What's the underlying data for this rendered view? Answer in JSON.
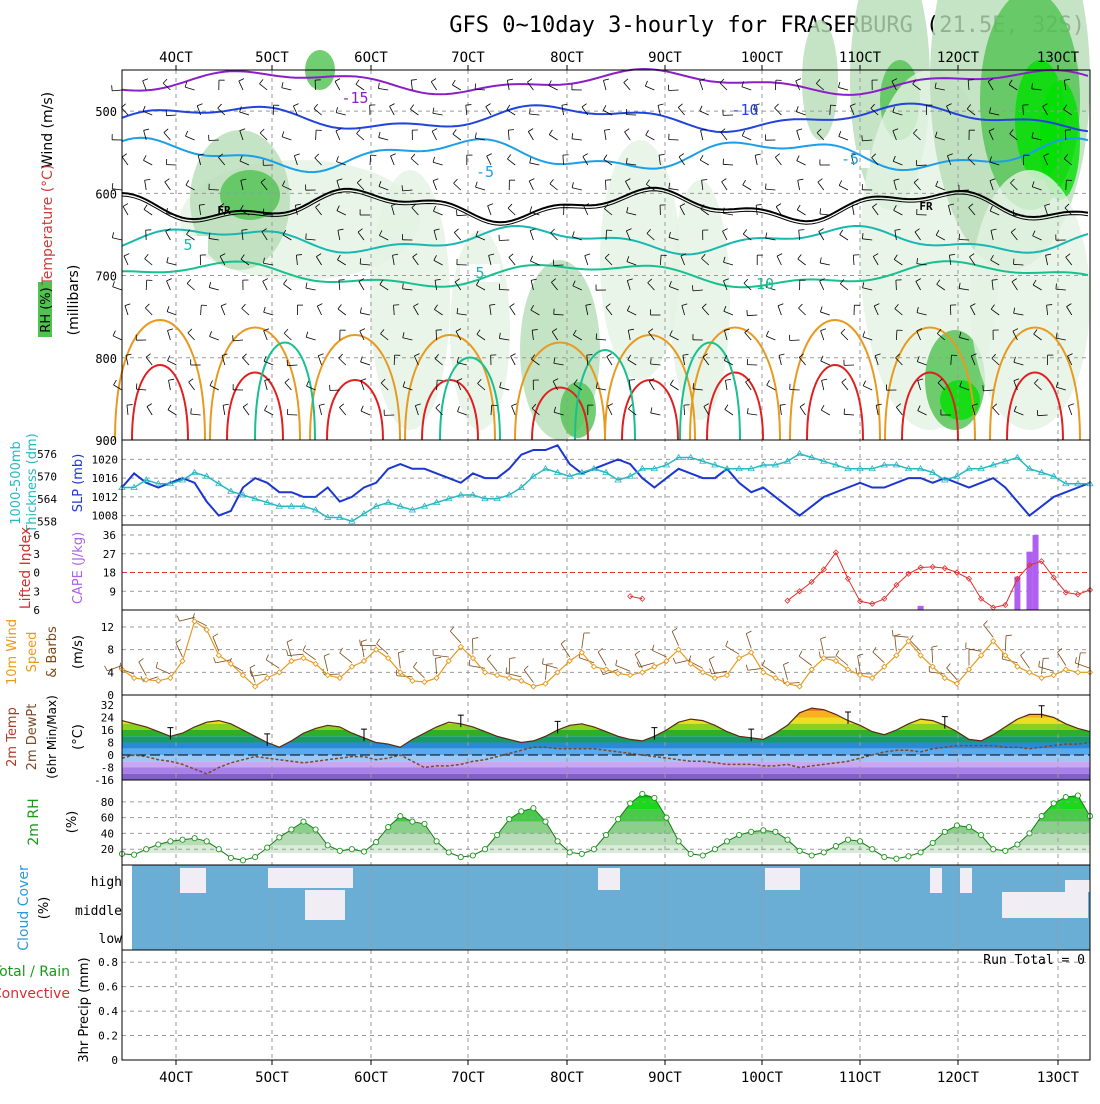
{
  "title": "GFS 0~10day 3-hourly for FRASERBURG (21.5E, 32S)",
  "date_ticks": [
    "4OCT",
    "5OCT",
    "6OCT",
    "7OCT",
    "8OCT",
    "9OCT",
    "10OCT",
    "11OCT",
    "12OCT",
    "13OCT"
  ],
  "colors": {
    "frame": "#000000",
    "grid": "#9a9a9a",
    "rh_light": "#e4f2e4",
    "rh_mid": "#b7dcb7",
    "rh_dark": "#4fc24f",
    "rh_bright": "#00e000",
    "temp_purple": "#8a1fc8",
    "temp_blue": "#2244dd",
    "temp_lightblue": "#1a9fe8",
    "temp_teal": "#18b8b0",
    "temp_green": "#18c090",
    "temp_orange": "#e89a20",
    "temp_red": "#e02020",
    "slp": "#1c36d0",
    "thickness": "#27b8c2",
    "lifted": "#e03030",
    "cape": "#b060f0",
    "wind_speed": "#e89a20",
    "barb": "#7a4a1a",
    "rh2m": "#1a9a1a",
    "cloud": "#6aaed6",
    "cloud_gap": "#f0eef4"
  },
  "chart_data": [
    {
      "type": "heatmap",
      "panel": "upper-air cross-section",
      "ylabel": "(millibars)",
      "left_labels": [
        "Wind (m/s)",
        "Temperature (°C)",
        "RH (%)"
      ],
      "y_ticks": [
        "500",
        "600",
        "700",
        "800",
        "900"
      ],
      "ylim": [
        900,
        450
      ],
      "freezing_label": "FR",
      "temperature_isotherm_labels": [
        "-15",
        "-10",
        "-5",
        "-5",
        "5",
        "5",
        "10"
      ]
    },
    {
      "type": "line",
      "panel": "SLP / Thickness",
      "left_labels": [
        "1000-500mb",
        "Thickness (dm)",
        "SLP (mb)"
      ],
      "thickness_ticks": [
        "576",
        "570",
        "564",
        "558"
      ],
      "slp_ticks": [
        "1020",
        "1016",
        "1012",
        "1008"
      ],
      "x": [
        0,
        1,
        2,
        3,
        4,
        5,
        6,
        7,
        8,
        9,
        10,
        11,
        12,
        13,
        14,
        15,
        16,
        17,
        18,
        19,
        20,
        21,
        22,
        23,
        24,
        25,
        26,
        27,
        28,
        29,
        30,
        31,
        32,
        33,
        34,
        35,
        36,
        37,
        38,
        39,
        40,
        41,
        42,
        43,
        44,
        45,
        46,
        47,
        48,
        49,
        50,
        51,
        52,
        53,
        54,
        55,
        56,
        57,
        58,
        59,
        60,
        61,
        62,
        63,
        64,
        65,
        66,
        67,
        68,
        69,
        70,
        71,
        72,
        73,
        74,
        75,
        76,
        77,
        78,
        79,
        80
      ],
      "series": [
        {
          "name": "SLP (mb)",
          "values": [
            1014,
            1017,
            1015,
            1014,
            1015,
            1016,
            1015,
            1011,
            1008,
            1009,
            1014,
            1016,
            1015,
            1013,
            1013,
            1012,
            1012,
            1014,
            1011,
            1012,
            1014,
            1015,
            1018,
            1019,
            1018,
            1018,
            1017,
            1016,
            1015,
            1017,
            1016,
            1016,
            1018,
            1021,
            1022,
            1022,
            1023,
            1019,
            1017,
            1018,
            1019,
            1020,
            1019,
            1016,
            1014,
            1016,
            1018,
            1017,
            1016,
            1016,
            1018,
            1015,
            1013,
            1014,
            1012,
            1010,
            1008,
            1010,
            1012,
            1013,
            1014,
            1015,
            1014,
            1014,
            1015,
            1016,
            1016,
            1015,
            1016,
            1015,
            1014,
            1015,
            1016,
            1014,
            1011,
            1008,
            1010,
            1012,
            1013,
            1014,
            1015
          ]
        },
        {
          "name": "1000-500mb Thickness (dm)",
          "values": [
            567,
            567,
            569,
            568,
            568,
            569,
            571,
            570,
            568,
            566,
            565,
            564,
            563,
            562,
            562,
            562,
            561,
            559,
            559,
            558,
            560,
            562,
            563,
            562,
            561,
            562,
            563,
            564,
            565,
            565,
            564,
            564,
            565,
            567,
            570,
            572,
            571,
            570,
            571,
            572,
            571,
            569,
            570,
            572,
            572,
            573,
            575,
            575,
            574,
            573,
            572,
            572,
            572,
            573,
            573,
            574,
            576,
            575,
            574,
            573,
            572,
            572,
            572,
            573,
            573,
            572,
            572,
            571,
            569,
            570,
            572,
            572,
            573,
            574,
            575,
            572,
            571,
            570,
            568,
            568,
            568
          ]
        }
      ]
    },
    {
      "type": "line",
      "panel": "Lifted Index / CAPE",
      "left_labels": [
        "Lifted Index",
        "CAPE (J/kg)"
      ],
      "lifted_ticks": [
        "-6",
        "-3",
        "0",
        "3",
        "6"
      ],
      "cape_ticks": [
        "36",
        "27",
        "18",
        "9"
      ],
      "series": [
        {
          "name": "Lifted Index",
          "points": [
            [
              42,
              3.8
            ],
            [
              43,
              4.2
            ],
            [
              55,
              4.5
            ],
            [
              56,
              3.0
            ],
            [
              57,
              1.5
            ],
            [
              58,
              -0.5
            ],
            [
              59,
              -3.2
            ],
            [
              60,
              1.0
            ],
            [
              61,
              4.6
            ],
            [
              62,
              5.0
            ],
            [
              63,
              4.2
            ],
            [
              64,
              2.0
            ],
            [
              65,
              0.2
            ],
            [
              66,
              -0.8
            ],
            [
              67,
              -0.9
            ],
            [
              68,
              -0.7
            ],
            [
              69,
              0.0
            ],
            [
              70,
              1.0
            ],
            [
              71,
              4.2
            ],
            [
              72,
              5.6
            ],
            [
              73,
              5.2
            ],
            [
              74,
              1.0
            ],
            [
              75,
              -1.2
            ],
            [
              76,
              -1.8
            ],
            [
              77,
              0.8
            ],
            [
              78,
              3.2
            ],
            [
              79,
              3.5
            ],
            [
              80,
              2.8
            ]
          ]
        },
        {
          "name": "CAPE (J/kg)",
          "bars": [
            [
              66,
              2
            ],
            [
              74,
              16
            ],
            [
              75,
              28
            ],
            [
              75.5,
              36
            ]
          ]
        }
      ]
    },
    {
      "type": "line",
      "panel": "10m Wind",
      "left_labels": [
        "10m Wind",
        "Speed",
        "& Barbs"
      ],
      "ylabel": "(m/s)",
      "y_ticks": [
        "12",
        "8",
        "4",
        "0"
      ],
      "series": [
        {
          "name": "10m Wind Speed",
          "values": [
            4.5,
            3.0,
            2.7,
            2.5,
            3.0,
            6.0,
            13.0,
            11.5,
            7.0,
            5.5,
            3.5,
            1.5,
            3.0,
            4.0,
            6.0,
            6.5,
            5.5,
            3.5,
            3.0,
            5.0,
            6.0,
            8.0,
            6.5,
            4.0,
            2.5,
            2.3,
            3.0,
            6.0,
            8.5,
            6.5,
            4.0,
            3.5,
            3.0,
            2.5,
            1.5,
            2.0,
            4.0,
            6.0,
            7.5,
            5.0,
            4.5,
            3.8,
            3.5,
            4.0,
            5.0,
            6.0,
            8.0,
            5.5,
            4.0,
            3.0,
            3.5,
            6.5,
            7.5,
            4.0,
            3.0,
            2.0,
            1.5,
            4.5,
            6.5,
            6.0,
            4.5,
            3.5,
            3.0,
            5.0,
            7.0,
            9.5,
            7.0,
            5.0,
            3.0,
            2.0,
            4.5,
            7.0,
            9.5,
            7.0,
            5.0,
            4.0,
            3.0,
            3.5,
            4.5,
            4.0,
            4.0
          ]
        }
      ]
    },
    {
      "type": "area",
      "panel": "2m Temp / DewPt",
      "left_labels": [
        "2m Temp",
        "2m DewPt",
        "(6hr Min/Max)"
      ],
      "ylabel": "(°C)",
      "y_ticks": [
        "32",
        "24",
        "16",
        "8",
        "0",
        "-8",
        "-16"
      ],
      "series": [
        {
          "name": "2m Temp",
          "values": [
            22,
            20,
            18,
            15,
            12,
            14,
            18,
            21,
            22,
            20,
            16,
            12,
            8,
            5,
            9,
            14,
            17,
            19,
            18,
            14,
            11,
            8,
            7,
            5,
            10,
            14,
            18,
            21,
            20,
            18,
            15,
            12,
            10,
            8,
            9,
            12,
            16,
            19,
            20,
            18,
            15,
            12,
            10,
            9,
            12,
            16,
            21,
            23,
            22,
            19,
            15,
            12,
            11,
            10,
            14,
            19,
            27,
            30,
            29,
            26,
            22,
            19,
            15,
            13,
            16,
            20,
            23,
            22,
            19,
            15,
            10,
            9,
            13,
            18,
            23,
            26,
            26,
            24,
            20,
            17,
            15
          ]
        },
        {
          "name": "2m DewPt",
          "values": [
            -2,
            0,
            -1,
            -3,
            -4,
            -6,
            -9,
            -12,
            -8,
            -5,
            -3,
            -1,
            -2,
            -3,
            -4,
            -5,
            -4,
            -3,
            -2,
            -1,
            -1,
            -3,
            -2,
            0,
            -4,
            -8,
            -7,
            -7,
            -6,
            -4,
            -3,
            -1,
            1,
            3,
            5,
            5,
            4,
            4,
            4,
            4,
            3,
            2,
            1,
            0,
            -1,
            -2,
            -3,
            -4,
            -4,
            -5,
            -6,
            -6,
            -6,
            -7,
            -7,
            -6,
            -8,
            -7,
            -6,
            -5,
            -4,
            -2,
            0,
            2,
            3,
            3,
            2,
            4,
            5,
            6,
            6,
            6,
            6,
            5,
            5,
            4,
            5,
            6,
            7,
            7,
            8
          ]
        }
      ]
    },
    {
      "type": "area",
      "panel": "2m RH",
      "ylabel": "(%)",
      "left_labels": [
        "2m RH"
      ],
      "y_ticks": [
        "80",
        "60",
        "40",
        "20"
      ],
      "series": [
        {
          "name": "2m RH",
          "values": [
            14,
            13,
            20,
            26,
            30,
            32,
            34,
            30,
            20,
            9,
            6,
            10,
            22,
            35,
            45,
            55,
            45,
            25,
            18,
            20,
            17,
            29,
            48,
            62,
            55,
            52,
            30,
            16,
            10,
            12,
            20,
            38,
            58,
            68,
            72,
            55,
            30,
            16,
            14,
            20,
            38,
            58,
            78,
            90,
            85,
            60,
            30,
            14,
            12,
            20,
            30,
            38,
            42,
            44,
            42,
            32,
            18,
            12,
            16,
            24,
            32,
            30,
            20,
            10,
            8,
            11,
            16,
            28,
            42,
            50,
            48,
            38,
            20,
            18,
            26,
            40,
            62,
            78,
            86,
            88,
            62
          ]
        }
      ]
    },
    {
      "type": "table",
      "panel": "Cloud Cover",
      "left_labels": [
        "Cloud Cover",
        "(%)"
      ],
      "y_ticks": [
        "high",
        "middle",
        "low"
      ]
    },
    {
      "type": "line",
      "panel": "3hr Precip",
      "left_labels": [
        "Total / Rain",
        "Convective",
        "3hr Precip (mm)"
      ],
      "y_ticks": [
        "0.8",
        "0.6",
        "0.4",
        "0.2",
        "0"
      ],
      "ylim": [
        0,
        0.9
      ],
      "run_total_label": "Run Total = 0",
      "values": []
    }
  ]
}
